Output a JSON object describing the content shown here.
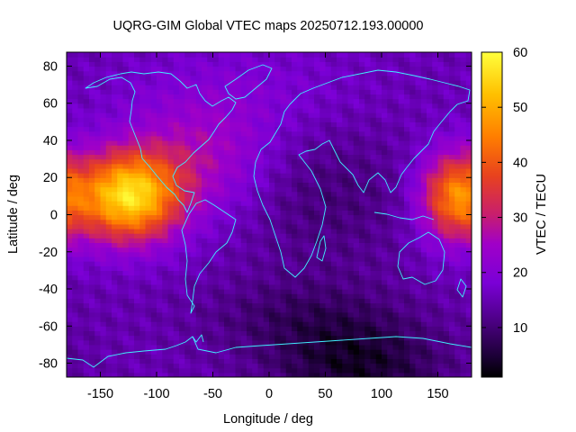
{
  "chart_data": {
    "type": "heatmap",
    "title": "UQRG-GIM Global VTEC maps 20250712.193.00000",
    "xlabel": "Longitude / deg",
    "ylabel": "Latitude / deg",
    "colorbar_label": "VTEC / TECU",
    "xlim": [
      -180,
      180
    ],
    "ylim": [
      -87.5,
      87.5
    ],
    "x_ticks": [
      -150,
      -100,
      -50,
      0,
      50,
      100,
      150
    ],
    "y_ticks": [
      -80,
      -60,
      -40,
      -20,
      0,
      20,
      40,
      60,
      80
    ],
    "colorbar_range": [
      1,
      60
    ],
    "colorbar_ticks": [
      10,
      20,
      30,
      40,
      50,
      60
    ],
    "grid": false,
    "grid_resolution": {
      "dlon": 5,
      "dlat": 2.5
    },
    "colormap": [
      "#000000",
      "#1a0033",
      "#4b0082",
      "#7a00d6",
      "#a000c8",
      "#c81e6e",
      "#e8421e",
      "#ff7e00",
      "#ffc000",
      "#ffff3c"
    ],
    "coastline_color": "#40f0ff",
    "features": [
      {
        "name": "equatorial anomaly east Pacific",
        "lon": -125,
        "lat": 10,
        "peak_vtec": 57
      },
      {
        "name": "equatorial anomaly west Pacific",
        "lon": 165,
        "lat": 10,
        "peak_vtec": 45
      },
      {
        "name": "southern high-latitude minimum",
        "lon": 80,
        "lat": -82,
        "min_vtec": 2
      }
    ]
  }
}
